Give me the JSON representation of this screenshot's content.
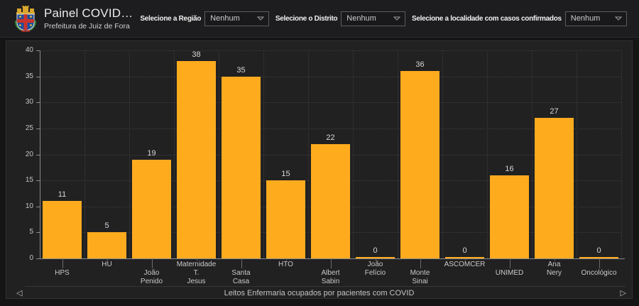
{
  "header": {
    "title": "Painel COVID…",
    "subtitle": "Prefeitura de Juiz de Fora",
    "logo_icon": "juiz-de-fora-coat-of-arms",
    "filters": [
      {
        "label": "Selecione a Região",
        "value": "Nenhum",
        "icon": "chevron-down-icon"
      },
      {
        "label": "Selecione o Distrito",
        "value": "Nenhum",
        "icon": "chevron-down-icon"
      },
      {
        "label": "Selecione a localidade com casos confirmados",
        "value": "Nenhum",
        "icon": "chevron-down-icon"
      }
    ]
  },
  "chart_data": {
    "type": "bar",
    "title": "Leitos Enfermaria ocupados por pacientes com COVID",
    "categories": [
      "HPS",
      "HU",
      "João Penido",
      "Maternidade T. Jesus",
      "Santa Casa",
      "HTO",
      "Albert Sabin",
      "João Felício",
      "Monte Sinai",
      "ASCOMCER",
      "UNIMED",
      "Ana Nery",
      "Oncológico"
    ],
    "category_lines": [
      [
        "HPS"
      ],
      [
        "HU"
      ],
      [
        "João",
        "Penido"
      ],
      [
        "Maternidade",
        "T.",
        "Jesus"
      ],
      [
        "Santa",
        "Casa"
      ],
      [
        "HTO"
      ],
      [
        "Albert",
        "Sabin"
      ],
      [
        "João",
        "Felício"
      ],
      [
        "Monte",
        "Sinai"
      ],
      [
        "ASCOMCER"
      ],
      [
        "UNIMED"
      ],
      [
        "Ana",
        "Nery"
      ],
      [
        "Oncológico"
      ]
    ],
    "values": [
      11,
      5,
      19,
      38,
      35,
      15,
      22,
      0,
      36,
      0,
      16,
      27,
      0
    ],
    "xlabel": "",
    "ylabel": "",
    "ylim": [
      0,
      40
    ],
    "ytick_step": 5,
    "grid": true,
    "legend": false,
    "bar_color": "#FFAB1E"
  },
  "footer": {
    "prev_icon": "◁",
    "next_icon": "▷"
  },
  "colors": {
    "page_background": "#151516",
    "panel_background": "#212122",
    "bar": "#FFAB1E"
  }
}
